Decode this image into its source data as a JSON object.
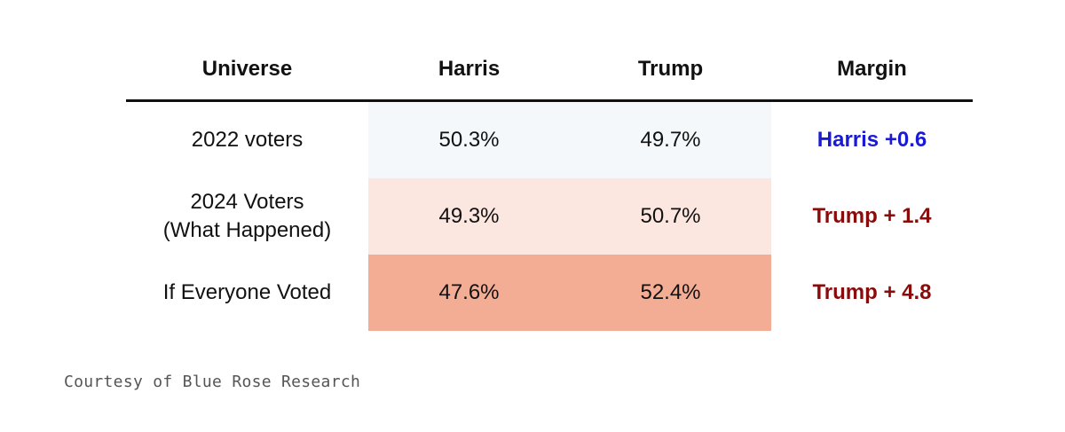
{
  "chart_data": {
    "type": "table",
    "columns": [
      "Universe",
      "Harris",
      "Trump",
      "Margin"
    ],
    "rows": [
      {
        "universe": "2022 voters",
        "harris": "50.3%",
        "trump": "49.7%",
        "margin": "Harris +0.6",
        "margin_color": "#1a1ad6",
        "shade_color": "#f4f8fb"
      },
      {
        "universe": "2024 Voters\n(What Happened)",
        "harris": "49.3%",
        "trump": "50.7%",
        "margin": "Trump + 1.4",
        "margin_color": "#8b0a0a",
        "shade_color": "#fbe6e0"
      },
      {
        "universe": "If Everyone Voted",
        "harris": "47.6%",
        "trump": "52.4%",
        "margin": "Trump + 4.8",
        "margin_color": "#8b0a0a",
        "shade_color": "#f3ad95"
      }
    ]
  },
  "footnote": "Courtesy of Blue Rose Research"
}
